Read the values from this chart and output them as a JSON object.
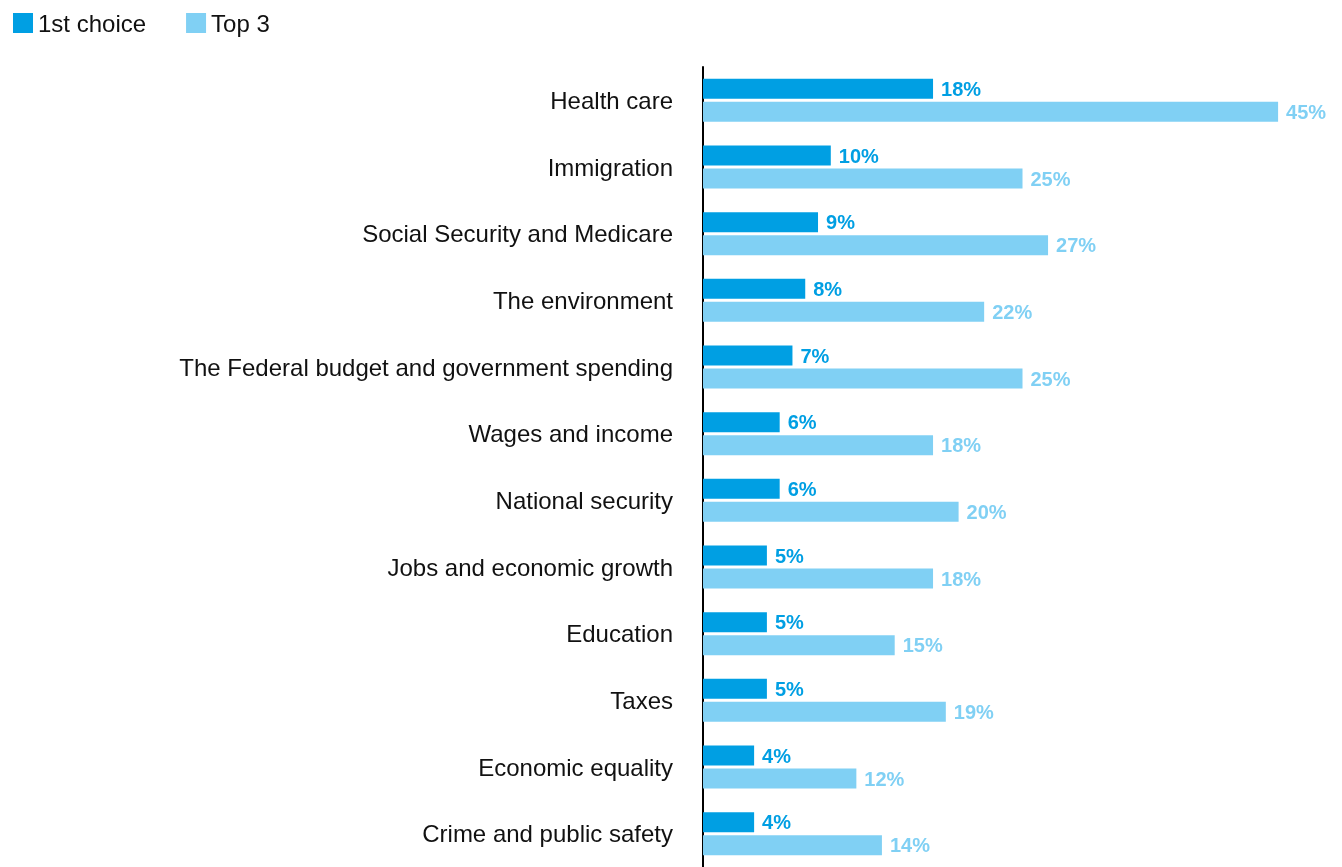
{
  "chart_data": {
    "type": "bar",
    "orientation": "horizontal",
    "categories": [
      "Health care",
      "Immigration",
      "Social Security and Medicare",
      "The environment",
      "The Federal budget and government spending",
      "Wages and income",
      "National security",
      "Jobs and economic growth",
      "Education",
      "Taxes",
      "Economic equality",
      "Crime and public safety"
    ],
    "series": [
      {
        "name": "1st choice",
        "color": "#009fe3",
        "values": [
          18,
          10,
          9,
          8,
          7,
          6,
          6,
          5,
          5,
          5,
          4,
          4
        ],
        "value_labels": [
          "18%",
          "10%",
          "9%",
          "8%",
          "7%",
          "6%",
          "6%",
          "5%",
          "5%",
          "5%",
          "4%",
          "4%"
        ]
      },
      {
        "name": "Top 3",
        "color": "#80d0f4",
        "values": [
          45,
          25,
          27,
          22,
          25,
          18,
          20,
          18,
          15,
          19,
          12,
          14
        ],
        "value_labels": [
          "45%",
          "25%",
          "27%",
          "22%",
          "25%",
          "18%",
          "20%",
          "18%",
          "15%",
          "19%",
          "12%",
          "14%"
        ]
      }
    ],
    "tick_labels": "y",
    "grid": false,
    "legend": "top left"
  }
}
